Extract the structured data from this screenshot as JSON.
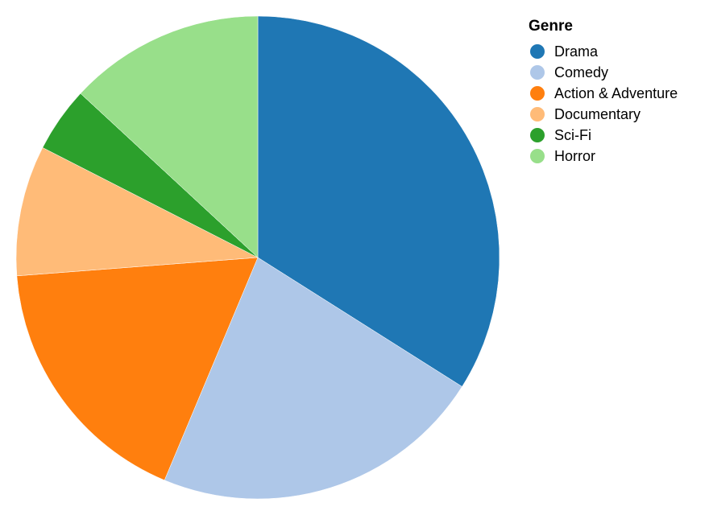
{
  "chart_data": {
    "type": "pie",
    "legend_title": "Genre",
    "legend_position": "top-right",
    "start_angle_deg": 0,
    "direction": "clockwise",
    "slices": [
      {
        "label": "Drama",
        "value": 35,
        "color": "#1f77b4"
      },
      {
        "label": "Comedy",
        "value": 23,
        "color": "#aec7e8"
      },
      {
        "label": "Action & Adventure",
        "value": 18,
        "color": "#ff7f0e"
      },
      {
        "label": "Documentary",
        "value": 9,
        "color": "#ffbb78"
      },
      {
        "label": "Sci-Fi",
        "value": 4.5,
        "color": "#2ca02c"
      },
      {
        "label": "Horror",
        "value": 13.5,
        "color": "#98df8a"
      }
    ]
  }
}
